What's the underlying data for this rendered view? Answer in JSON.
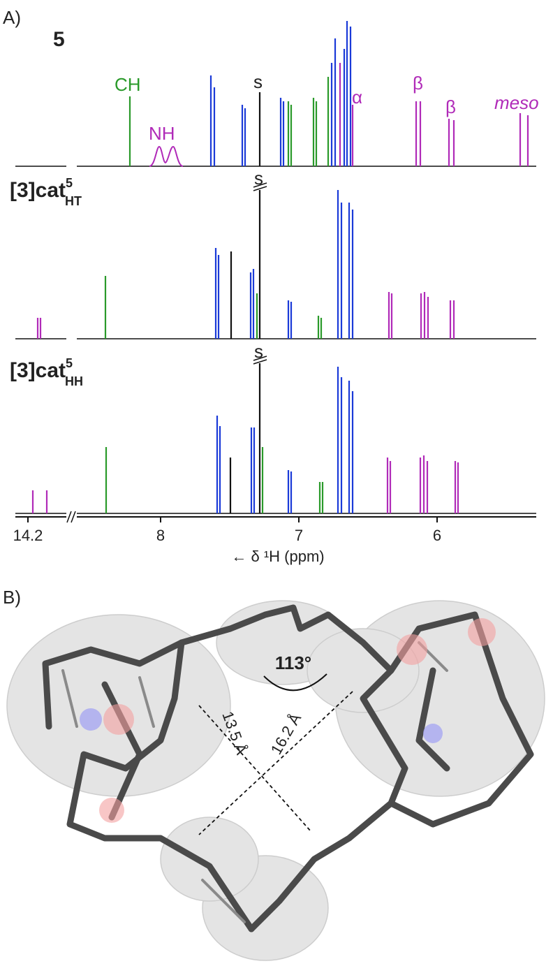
{
  "panel_a": {
    "label": "A)",
    "spectra": [
      {
        "label": "5"
      },
      {
        "label": "[3]cat",
        "superscript": "5",
        "subscript": "HT"
      },
      {
        "label": "[3]cat",
        "superscript": "5",
        "subscript": "HH"
      }
    ],
    "annotations": {
      "ch": "CH",
      "nh": "NH",
      "s": [
        "s",
        "s",
        "s"
      ],
      "alpha": "α",
      "beta": [
        "β",
        "β"
      ],
      "meso": "meso"
    },
    "x_axis": {
      "label": "← δ ¹H (ppm)",
      "ticks": [
        14.2,
        8,
        7,
        6
      ]
    }
  },
  "panel_b": {
    "label": "B)",
    "angle": "113°",
    "distances": [
      "13.5 Å",
      "16.2 Å"
    ]
  }
}
